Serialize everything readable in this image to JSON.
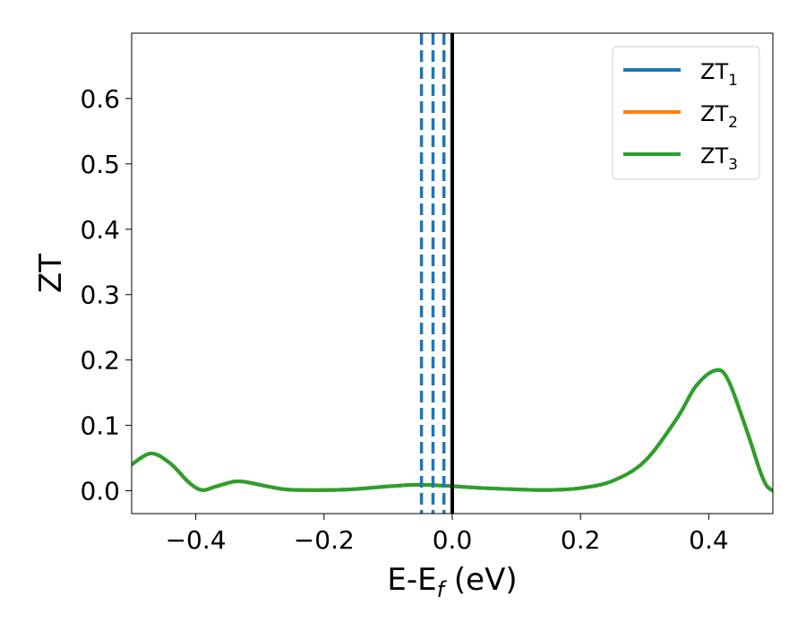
{
  "chart_data": {
    "type": "line",
    "xlabel": {
      "main": "E-E",
      "sub": "f",
      "unit": " (eV)"
    },
    "ylabel": "ZT",
    "xlim": [
      -0.5,
      0.5
    ],
    "ylim": [
      -0.035,
      0.7
    ],
    "xticks": [
      -0.4,
      -0.2,
      0.0,
      0.2,
      0.4
    ],
    "xtick_labels": [
      "−0.4",
      "−0.2",
      "0.0",
      "0.2",
      "0.4"
    ],
    "yticks": [
      0.0,
      0.1,
      0.2,
      0.3,
      0.4,
      0.5,
      0.6
    ],
    "ytick_labels": [
      "0.0",
      "0.1",
      "0.2",
      "0.3",
      "0.4",
      "0.5",
      "0.6"
    ],
    "legend_position": "top-right",
    "series": [
      {
        "name": "ZT",
        "subscript": "1",
        "color": "#1f77b4",
        "x": [
          -0.5,
          -0.47,
          -0.44,
          -0.41,
          -0.39,
          -0.37,
          -0.34,
          -0.32,
          -0.29,
          -0.26,
          -0.23,
          -0.2,
          -0.16,
          -0.12,
          -0.08,
          -0.05,
          -0.02,
          0.0,
          0.05,
          0.1,
          0.15,
          0.2,
          0.25,
          0.3,
          0.35,
          0.38,
          0.41,
          0.43,
          0.46,
          0.48,
          0.49,
          0.5
        ],
        "y": [
          0.04,
          0.057,
          0.042,
          0.012,
          0.001,
          0.006,
          0.014,
          0.013,
          0.007,
          0.002,
          0.001,
          0.001,
          0.002,
          0.005,
          0.008,
          0.009,
          0.008,
          0.007,
          0.004,
          0.002,
          0.001,
          0.004,
          0.015,
          0.045,
          0.11,
          0.16,
          0.184,
          0.17,
          0.09,
          0.03,
          0.008,
          0.0
        ]
      },
      {
        "name": "ZT",
        "subscript": "2",
        "color": "#ff7f0e",
        "x": [
          -0.5,
          -0.47,
          -0.44,
          -0.41,
          -0.39,
          -0.37,
          -0.34,
          -0.32,
          -0.29,
          -0.26,
          -0.23,
          -0.2,
          -0.16,
          -0.12,
          -0.08,
          -0.05,
          -0.02,
          0.0,
          0.05,
          0.1,
          0.15,
          0.2,
          0.25,
          0.3,
          0.35,
          0.38,
          0.41,
          0.43,
          0.46,
          0.48,
          0.49,
          0.5
        ],
        "y": [
          0.04,
          0.057,
          0.042,
          0.012,
          0.001,
          0.006,
          0.014,
          0.013,
          0.007,
          0.002,
          0.001,
          0.001,
          0.002,
          0.005,
          0.008,
          0.009,
          0.008,
          0.007,
          0.004,
          0.002,
          0.001,
          0.004,
          0.015,
          0.045,
          0.11,
          0.16,
          0.184,
          0.17,
          0.09,
          0.03,
          0.008,
          0.0
        ]
      },
      {
        "name": "ZT",
        "subscript": "3",
        "color": "#2ca02c",
        "x": [
          -0.5,
          -0.47,
          -0.44,
          -0.41,
          -0.39,
          -0.37,
          -0.34,
          -0.32,
          -0.29,
          -0.26,
          -0.23,
          -0.2,
          -0.16,
          -0.12,
          -0.08,
          -0.05,
          -0.02,
          0.0,
          0.05,
          0.1,
          0.15,
          0.2,
          0.25,
          0.3,
          0.35,
          0.38,
          0.41,
          0.43,
          0.46,
          0.48,
          0.49,
          0.5
        ],
        "y": [
          0.04,
          0.057,
          0.042,
          0.012,
          0.001,
          0.006,
          0.014,
          0.013,
          0.007,
          0.002,
          0.001,
          0.001,
          0.002,
          0.005,
          0.008,
          0.009,
          0.008,
          0.007,
          0.004,
          0.002,
          0.001,
          0.004,
          0.015,
          0.045,
          0.11,
          0.16,
          0.184,
          0.17,
          0.09,
          0.03,
          0.008,
          0.0
        ]
      }
    ],
    "vlines": [
      {
        "x": -0.048,
        "color": "#1f77b4",
        "style": "dashed"
      },
      {
        "x": -0.03,
        "color": "#1f77b4",
        "style": "dashed"
      },
      {
        "x": -0.013,
        "color": "#1f77b4",
        "style": "dashed"
      },
      {
        "x": 0.0,
        "color": "#000000",
        "style": "solid"
      }
    ]
  }
}
